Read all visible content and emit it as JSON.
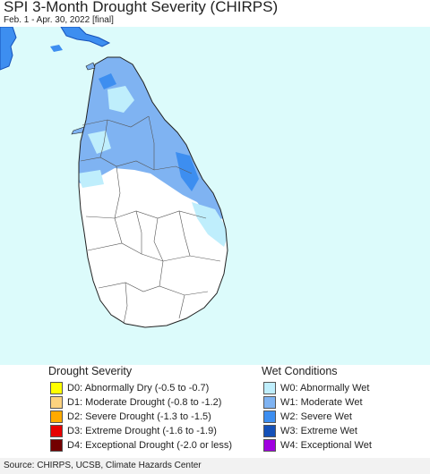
{
  "title": "SPI 3-Month Drought Severity (CHIRPS)",
  "subtitle": "Feb. 1 - Apr. 30, 2022 [final]",
  "source": "Source: CHIRPS, UCSB, Climate Hazards Center",
  "colors": {
    "ocean": "#dcfbfb",
    "land": "#ffffff",
    "w0": "#bfeefc",
    "w1": "#7fb3f2",
    "w2": "#3d8ef0",
    "w3": "#1450b8",
    "w4": "#a000e0"
  },
  "legend": {
    "drought": {
      "title": "Drought Severity",
      "items": [
        {
          "label": "D0: Abnormally Dry (-0.5 to -0.7)",
          "color": "#ffff00"
        },
        {
          "label": "D1: Moderate Drought (-0.8 to -1.2)",
          "color": "#fcd37f"
        },
        {
          "label": "D2: Severe Drought (-1.3 to -1.5)",
          "color": "#ffaa00"
        },
        {
          "label": "D3: Extreme Drought (-1.6 to -1.9)",
          "color": "#e60000"
        },
        {
          "label": "D4: Exceptional Drought (-2.0 or less)",
          "color": "#730000"
        }
      ]
    },
    "wet": {
      "title": "Wet Conditions",
      "items": [
        {
          "label": "W0: Abnormally Wet",
          "color": "#bfeefc"
        },
        {
          "label": "W1: Moderate Wet",
          "color": "#7fb3f2"
        },
        {
          "label": "W2: Severe Wet",
          "color": "#3d8ef0"
        },
        {
          "label": "W3: Extreme Wet",
          "color": "#1450b8"
        },
        {
          "label": "W4: Exceptional Wet",
          "color": "#a000e0"
        }
      ]
    }
  }
}
